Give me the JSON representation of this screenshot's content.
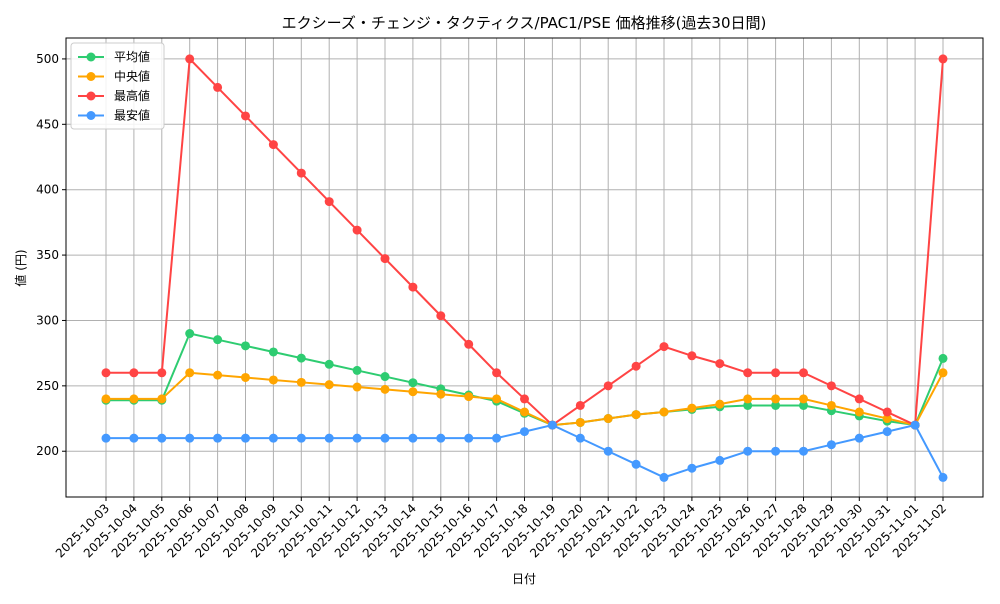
{
  "chart_data": {
    "type": "line",
    "title": "エクシーズ・チェンジ・タクティクス/PAC1/PSE 価格推移(過去30日間)",
    "xlabel": "日付",
    "ylabel": "値 (円)",
    "ylim": [
      165,
      516
    ],
    "yticks": [
      200,
      250,
      300,
      350,
      400,
      450,
      500
    ],
    "grid": true,
    "legend_position": "top-left",
    "x": [
      "2025-10-03",
      "2025-10-04",
      "2025-10-05",
      "2025-10-06",
      "2025-10-07",
      "2025-10-08",
      "2025-10-09",
      "2025-10-10",
      "2025-10-11",
      "2025-10-12",
      "2025-10-13",
      "2025-10-14",
      "2025-10-15",
      "2025-10-16",
      "2025-10-17",
      "2025-10-18",
      "2025-10-19",
      "2025-10-20",
      "2025-10-21",
      "2025-10-22",
      "2025-10-23",
      "2025-10-24",
      "2025-10-25",
      "2025-10-26",
      "2025-10-27",
      "2025-10-28",
      "2025-10-29",
      "2025-10-30",
      "2025-10-31",
      "2025-11-01",
      "2025-11-02"
    ],
    "series": [
      {
        "name": "平均値",
        "color": "#2ecc71",
        "values": [
          239,
          239,
          239,
          290,
          285.3,
          280.6,
          275.9,
          271.2,
          266.5,
          261.8,
          257.1,
          252.4,
          247.7,
          243,
          238.3,
          229,
          220,
          222,
          225,
          228,
          230,
          232,
          234,
          235,
          235,
          235,
          231,
          227,
          223,
          220,
          271
        ]
      },
      {
        "name": "中央値",
        "color": "#ffa500",
        "values": [
          240,
          240,
          240,
          260,
          258.2,
          256.4,
          254.5,
          252.7,
          250.9,
          249.1,
          247.3,
          245.5,
          243.6,
          241.8,
          240,
          230,
          220,
          222,
          225,
          228,
          230,
          233,
          236,
          240,
          240,
          240,
          235,
          230,
          225,
          220,
          260
        ]
      },
      {
        "name": "最高値",
        "color": "#ff4444",
        "values": [
          260,
          260,
          260,
          500,
          478.2,
          456.4,
          434.5,
          412.7,
          390.9,
          369.1,
          347.3,
          325.5,
          303.6,
          281.8,
          260,
          240,
          220,
          235,
          250,
          265,
          280,
          273,
          267,
          260,
          260,
          260,
          250,
          240,
          230,
          220,
          500
        ]
      },
      {
        "name": "最安値",
        "color": "#4499ff",
        "values": [
          210,
          210,
          210,
          210,
          210,
          210,
          210,
          210,
          210,
          210,
          210,
          210,
          210,
          210,
          210,
          215,
          220,
          210,
          200,
          190,
          180,
          187,
          193,
          200,
          200,
          200,
          205,
          210,
          215,
          220,
          180
        ]
      }
    ]
  }
}
